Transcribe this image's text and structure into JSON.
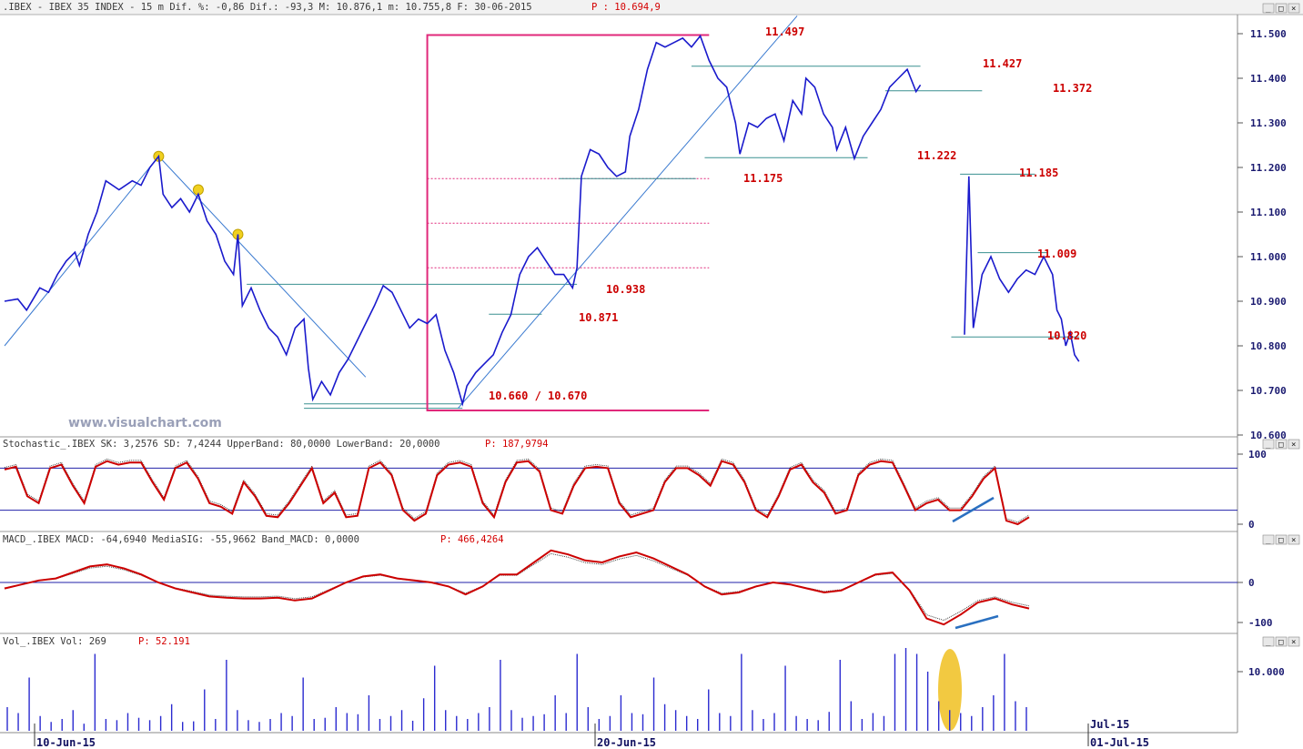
{
  "panels": {
    "price_header": ".IBEX - IBEX 35 INDEX -  15 m Dif. %: -0,86 Dif.: -93,3 M: 10.876,1 m: 10.755,8 F: 30-06-2015",
    "price_header_p": "P : 10.694,9",
    "stoch_header": "Stochastic_.IBEX SK: 3,2576 SD: 7,4244 UpperBand: 80,0000 LowerBand: 20,0000",
    "stoch_header_p": "P: 187,9794",
    "macd_header": "MACD_.IBEX MACD: -64,6940 MediaSIG: -55,9662 Band_MACD: 0,0000",
    "macd_header_p": "P: 466,4264",
    "vol_header": "Vol_.IBEX Vol: 269",
    "vol_header_p": "P: 52.191",
    "watermark": "www.visualchart.com"
  },
  "window_buttons": [
    "_",
    "□",
    "×"
  ],
  "colors": {
    "price": "#1a1acc",
    "levels": "#cc0000",
    "box": "#e0287a",
    "stoch": "#cc0000",
    "axis_text": "#1a1a70"
  },
  "chart_data": [
    {
      "type": "line",
      "title": ".IBEX - IBEX 35 INDEX - 15 m",
      "x_ticks": [
        "10-Jun-15",
        "20-Jun-15",
        "01-Jul-15"
      ],
      "x_tick_upper": "Jul-15",
      "y_ticks": [
        "11.500",
        "11.400",
        "11.300",
        "11.200",
        "11.100",
        "11.000",
        "10.900",
        "10.800",
        "10.700",
        "10.600"
      ],
      "ylim": [
        10600,
        11550
      ],
      "levels": [
        "11.497",
        "11.427",
        "11.372",
        "11.222",
        "11.175",
        "11.185",
        "11.009",
        "10.938",
        "10.871",
        "10.820",
        "10.660 / 10.670"
      ],
      "path": [
        {
          "x": 0,
          "y": 10900
        },
        {
          "x": 3,
          "y": 10905
        },
        {
          "x": 5,
          "y": 10880
        },
        {
          "x": 8,
          "y": 10930
        },
        {
          "x": 10,
          "y": 10920
        },
        {
          "x": 12,
          "y": 10960
        },
        {
          "x": 14,
          "y": 10990
        },
        {
          "x": 16,
          "y": 11010
        },
        {
          "x": 17,
          "y": 10980
        },
        {
          "x": 19,
          "y": 11050
        },
        {
          "x": 21,
          "y": 11100
        },
        {
          "x": 23,
          "y": 11170
        },
        {
          "x": 26,
          "y": 11150
        },
        {
          "x": 29,
          "y": 11170
        },
        {
          "x": 31,
          "y": 11160
        },
        {
          "x": 33,
          "y": 11200
        },
        {
          "x": 35,
          "y": 11225
        },
        {
          "x": 36,
          "y": 11140
        },
        {
          "x": 38,
          "y": 11110
        },
        {
          "x": 40,
          "y": 11130
        },
        {
          "x": 42,
          "y": 11100
        },
        {
          "x": 44,
          "y": 11140
        },
        {
          "x": 46,
          "y": 11080
        },
        {
          "x": 48,
          "y": 11050
        },
        {
          "x": 50,
          "y": 10990
        },
        {
          "x": 52,
          "y": 10960
        },
        {
          "x": 53,
          "y": 11050
        },
        {
          "x": 54,
          "y": 10890
        },
        {
          "x": 56,
          "y": 10930
        },
        {
          "x": 58,
          "y": 10880
        },
        {
          "x": 60,
          "y": 10840
        },
        {
          "x": 62,
          "y": 10820
        },
        {
          "x": 64,
          "y": 10780
        },
        {
          "x": 66,
          "y": 10840
        },
        {
          "x": 68,
          "y": 10860
        },
        {
          "x": 69,
          "y": 10750
        },
        {
          "x": 70,
          "y": 10680
        },
        {
          "x": 72,
          "y": 10720
        },
        {
          "x": 74,
          "y": 10690
        },
        {
          "x": 76,
          "y": 10740
        },
        {
          "x": 78,
          "y": 10770
        },
        {
          "x": 80,
          "y": 10810
        },
        {
          "x": 82,
          "y": 10850
        },
        {
          "x": 84,
          "y": 10890
        },
        {
          "x": 86,
          "y": 10935
        },
        {
          "x": 88,
          "y": 10920
        },
        {
          "x": 90,
          "y": 10880
        },
        {
          "x": 92,
          "y": 10840
        },
        {
          "x": 94,
          "y": 10860
        },
        {
          "x": 96,
          "y": 10850
        },
        {
          "x": 98,
          "y": 10870
        },
        {
          "x": 100,
          "y": 10790
        },
        {
          "x": 102,
          "y": 10740
        },
        {
          "x": 104,
          "y": 10670
        },
        {
          "x": 105,
          "y": 10710
        },
        {
          "x": 107,
          "y": 10740
        },
        {
          "x": 109,
          "y": 10760
        },
        {
          "x": 111,
          "y": 10780
        },
        {
          "x": 113,
          "y": 10830
        },
        {
          "x": 115,
          "y": 10870
        },
        {
          "x": 117,
          "y": 10960
        },
        {
          "x": 119,
          "y": 11000
        },
        {
          "x": 121,
          "y": 11020
        },
        {
          "x": 123,
          "y": 10990
        },
        {
          "x": 125,
          "y": 10960
        },
        {
          "x": 127,
          "y": 10960
        },
        {
          "x": 129,
          "y": 10930
        },
        {
          "x": 130,
          "y": 10975
        },
        {
          "x": 131,
          "y": 11180
        },
        {
          "x": 133,
          "y": 11240
        },
        {
          "x": 135,
          "y": 11230
        },
        {
          "x": 137,
          "y": 11200
        },
        {
          "x": 139,
          "y": 11180
        },
        {
          "x": 141,
          "y": 11190
        },
        {
          "x": 142,
          "y": 11270
        },
        {
          "x": 144,
          "y": 11330
        },
        {
          "x": 146,
          "y": 11420
        },
        {
          "x": 148,
          "y": 11480
        },
        {
          "x": 150,
          "y": 11470
        },
        {
          "x": 152,
          "y": 11480
        },
        {
          "x": 154,
          "y": 11490
        },
        {
          "x": 156,
          "y": 11470
        },
        {
          "x": 158,
          "y": 11495
        },
        {
          "x": 160,
          "y": 11440
        },
        {
          "x": 162,
          "y": 11400
        },
        {
          "x": 164,
          "y": 11380
        },
        {
          "x": 166,
          "y": 11300
        },
        {
          "x": 167,
          "y": 11230
        },
        {
          "x": 169,
          "y": 11300
        },
        {
          "x": 171,
          "y": 11290
        },
        {
          "x": 173,
          "y": 11310
        },
        {
          "x": 175,
          "y": 11320
        },
        {
          "x": 177,
          "y": 11260
        },
        {
          "x": 179,
          "y": 11350
        },
        {
          "x": 181,
          "y": 11320
        },
        {
          "x": 182,
          "y": 11400
        },
        {
          "x": 184,
          "y": 11380
        },
        {
          "x": 186,
          "y": 11320
        },
        {
          "x": 188,
          "y": 11290
        },
        {
          "x": 189,
          "y": 11240
        },
        {
          "x": 191,
          "y": 11290
        },
        {
          "x": 193,
          "y": 11220
        },
        {
          "x": 195,
          "y": 11270
        },
        {
          "x": 197,
          "y": 11300
        },
        {
          "x": 199,
          "y": 11330
        },
        {
          "x": 201,
          "y": 11380
        },
        {
          "x": 203,
          "y": 11400
        },
        {
          "x": 205,
          "y": 11420
        },
        {
          "x": 207,
          "y": 11370
        },
        {
          "x": 208,
          "y": 11385
        }
      ],
      "path_after_gap": [
        {
          "x": 218,
          "y": 10825
        },
        {
          "x": 219,
          "y": 11180
        },
        {
          "x": 220,
          "y": 10840
        },
        {
          "x": 222,
          "y": 10960
        },
        {
          "x": 224,
          "y": 11000
        },
        {
          "x": 226,
          "y": 10950
        },
        {
          "x": 228,
          "y": 10920
        },
        {
          "x": 230,
          "y": 10950
        },
        {
          "x": 232,
          "y": 10970
        },
        {
          "x": 234,
          "y": 10960
        },
        {
          "x": 236,
          "y": 11000
        },
        {
          "x": 238,
          "y": 10960
        },
        {
          "x": 239,
          "y": 10880
        },
        {
          "x": 240,
          "y": 10860
        },
        {
          "x": 241,
          "y": 10800
        },
        {
          "x": 242,
          "y": 10830
        },
        {
          "x": 243,
          "y": 10780
        },
        {
          "x": 244,
          "y": 10765
        }
      ],
      "x_range": [
        0,
        280
      ]
    },
    {
      "type": "line",
      "title": "Stochastic_.IBEX",
      "y_ticks": [
        "100",
        "0"
      ],
      "ylim": [
        0,
        100
      ],
      "bands": [
        80,
        20
      ],
      "values": [
        78,
        82,
        40,
        30,
        80,
        85,
        55,
        30,
        82,
        90,
        85,
        88,
        88,
        60,
        35,
        80,
        88,
        65,
        30,
        25,
        15,
        60,
        40,
        12,
        10,
        30,
        55,
        80,
        30,
        45,
        10,
        12,
        80,
        88,
        70,
        20,
        5,
        15,
        70,
        85,
        88,
        82,
        30,
        10,
        60,
        88,
        90,
        75,
        20,
        15,
        55,
        80,
        82,
        80,
        30,
        10,
        15,
        20,
        60,
        80,
        80,
        70,
        55,
        90,
        85,
        60,
        20,
        10,
        40,
        78,
        85,
        60,
        45,
        15,
        20,
        70,
        85,
        90,
        88,
        55,
        20,
        30,
        35,
        20,
        20,
        40,
        65,
        80,
        5,
        0,
        10
      ]
    },
    {
      "type": "line",
      "title": "MACD_.IBEX",
      "y_ticks": [
        "0",
        "-100"
      ],
      "ylim": [
        -120,
        80
      ],
      "band": 0,
      "values": [
        -15,
        -5,
        5,
        10,
        25,
        40,
        45,
        35,
        20,
        0,
        -15,
        -25,
        -35,
        -38,
        -40,
        -40,
        -38,
        -45,
        -40,
        -20,
        0,
        15,
        20,
        10,
        5,
        0,
        -10,
        -30,
        -10,
        20,
        20,
        50,
        80,
        70,
        55,
        50,
        65,
        75,
        60,
        40,
        20,
        -10,
        -30,
        -25,
        -10,
        0,
        -5,
        -15,
        -25,
        -20,
        0,
        20,
        25,
        -20,
        -90,
        -105,
        -80,
        -50,
        -40,
        -55,
        -65
      ]
    },
    {
      "type": "bar",
      "title": "Vol_.IBEX",
      "y_ticks": [
        "10.000"
      ],
      "ylim": [
        0,
        14000
      ],
      "values": [
        4000,
        3000,
        9000,
        2500,
        1500,
        2000,
        3500,
        1200,
        13000,
        2000,
        1800,
        3000,
        2200,
        1800,
        2500,
        4500,
        1500,
        1600,
        7000,
        2000,
        12000,
        3500,
        1800,
        1500,
        2000,
        3000,
        2500,
        9000,
        2000,
        2200,
        4000,
        3000,
        2800,
        6000,
        2000,
        2500,
        3500,
        1700,
        5500,
        11000,
        3500,
        2500,
        2000,
        3000,
        4000,
        12000,
        3500,
        2200,
        2500,
        2800,
        6000,
        3000,
        13000,
        4000,
        2000,
        2500,
        6000,
        3000,
        2800,
        9000,
        4500,
        3500,
        2500,
        2000,
        7000,
        3000,
        2500,
        13000,
        3500,
        2000,
        3000,
        11000,
        2500,
        2000,
        1800,
        3200,
        12000,
        5000,
        2000,
        3000,
        2500,
        13000,
        14000,
        13000,
        10000,
        5000,
        3500,
        3000,
        2500,
        4000,
        6000,
        13000,
        5000,
        4000
      ]
    }
  ]
}
